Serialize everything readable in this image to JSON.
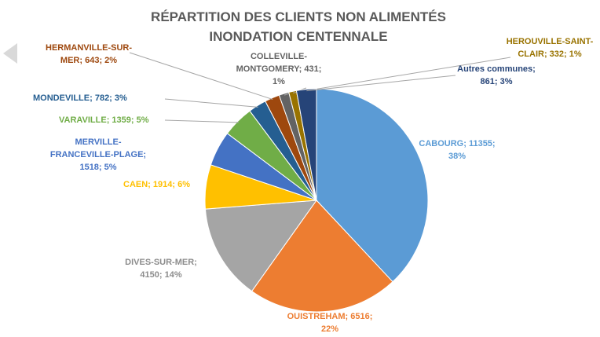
{
  "chart_data": {
    "type": "pie",
    "title": "RÉPARTITION DES CLIENTS NON ALIMENTÉS",
    "subtitle": "INONDATION CENTENNALE",
    "categories": [
      "CABOURG",
      "OUISTREHAM",
      "DIVES-SUR-MER",
      "CAEN",
      "MERVILLE-FRANCEVILLE-PLAGE",
      "VARAVILLE",
      "MONDEVILLE",
      "HERMANVILLE-SUR-MER",
      "COLLEVILLE-MONTGOMERY",
      "HEROUVILLE-SAINT-CLAIR",
      "Autres communes"
    ],
    "values": [
      11355,
      6516,
      4150,
      1914,
      1518,
      1359,
      782,
      643,
      431,
      332,
      861
    ],
    "percentages": [
      38,
      22,
      14,
      6,
      5,
      5,
      3,
      2,
      1,
      1,
      3
    ],
    "value_labels": [
      [
        "CABOURG; 11355;",
        "38%"
      ],
      [
        "OUISTREHAM; 6516;",
        "22%"
      ],
      [
        "DIVES-SUR-MER;",
        "4150; 14%"
      ],
      [
        "CAEN; 1914; 6%"
      ],
      [
        "MERVILLE-",
        "FRANCEVILLE-PLAGE;",
        "1518; 5%"
      ],
      [
        "VARAVILLE; 1359; 5%"
      ],
      [
        "MONDEVILLE; 782; 3%"
      ],
      [
        "HERMANVILLE-SUR-",
        "MER; 643; 2%"
      ],
      [
        "COLLEVILLE-",
        "MONTGOMERY; 431;",
        "1%"
      ],
      [
        "HEROUVILLE-SAINT-",
        "CLAIR; 332; 1%"
      ],
      [
        "Autres communes;",
        "861; 3%"
      ]
    ],
    "colors": [
      "#5b9bd5",
      "#ed7d31",
      "#a5a5a5",
      "#ffc000",
      "#4472c4",
      "#70ad47",
      "#255e91",
      "#9e480e",
      "#636363",
      "#997300",
      "#264478"
    ]
  }
}
